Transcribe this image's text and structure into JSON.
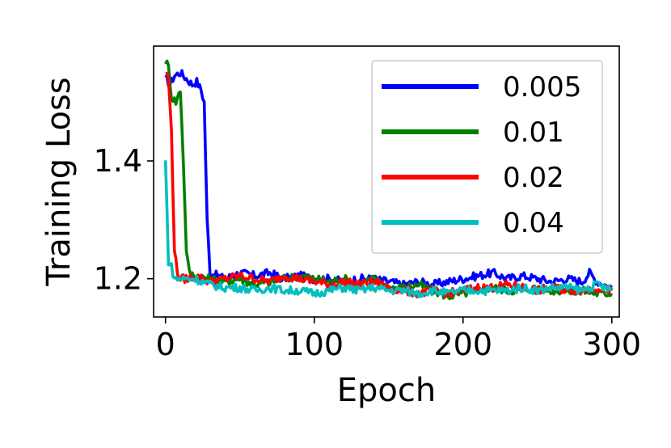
{
  "chart_data": {
    "type": "line",
    "title": "",
    "xlabel": "Epoch",
    "ylabel": "Training Loss",
    "xlim": [
      -8,
      305
    ],
    "ylim": [
      1.135,
      1.595
    ],
    "xticks": [
      0,
      100,
      200,
      300
    ],
    "xtick_labels": [
      "0",
      "100",
      "200",
      "300"
    ],
    "yticks": [
      1.2,
      1.4
    ],
    "ytick_labels": [
      "1.2",
      "1.4"
    ],
    "grid": false,
    "legend_position": "upper right",
    "series": [
      {
        "name": "0.005",
        "color": "#0000ff",
        "x": [
          0,
          3,
          6,
          10,
          14,
          18,
          21,
          24,
          26,
          28,
          30,
          35,
          40,
          50,
          60,
          70,
          80,
          90,
          100,
          110,
          120,
          130,
          140,
          150,
          160,
          170,
          180,
          190,
          200,
          210,
          220,
          230,
          240,
          250,
          260,
          270,
          280,
          285,
          290,
          295,
          300
        ],
        "y": [
          1.54,
          1.53,
          1.545,
          1.55,
          1.54,
          1.53,
          1.535,
          1.52,
          1.5,
          1.3,
          1.21,
          1.205,
          1.2,
          1.21,
          1.205,
          1.21,
          1.2,
          1.205,
          1.2,
          1.2,
          1.195,
          1.2,
          1.2,
          1.195,
          1.19,
          1.195,
          1.19,
          1.195,
          1.2,
          1.205,
          1.21,
          1.2,
          1.205,
          1.2,
          1.195,
          1.2,
          1.195,
          1.21,
          1.195,
          1.19,
          1.185
        ]
      },
      {
        "name": "0.01",
        "color": "#008000",
        "x": [
          0,
          2,
          4,
          7,
          10,
          12,
          14,
          16,
          20,
          30,
          40,
          50,
          60,
          70,
          80,
          90,
          100,
          110,
          120,
          130,
          140,
          150,
          160,
          170,
          180,
          190,
          200,
          210,
          220,
          230,
          240,
          250,
          260,
          270,
          280,
          290,
          300
        ],
        "y": [
          1.57,
          1.56,
          1.51,
          1.5,
          1.52,
          1.4,
          1.25,
          1.21,
          1.205,
          1.2,
          1.195,
          1.2,
          1.19,
          1.195,
          1.2,
          1.205,
          1.2,
          1.195,
          1.2,
          1.19,
          1.2,
          1.185,
          1.185,
          1.19,
          1.18,
          1.17,
          1.175,
          1.18,
          1.185,
          1.18,
          1.18,
          1.185,
          1.18,
          1.18,
          1.18,
          1.175,
          1.175
        ]
      },
      {
        "name": "0.02",
        "color": "#ff0000",
        "x": [
          0,
          2,
          4,
          6,
          8,
          10,
          15,
          20,
          30,
          40,
          50,
          60,
          70,
          80,
          90,
          100,
          110,
          120,
          130,
          140,
          150,
          160,
          170,
          180,
          190,
          200,
          210,
          220,
          230,
          240,
          250,
          260,
          270,
          280,
          290,
          300
        ],
        "y": [
          1.55,
          1.54,
          1.45,
          1.25,
          1.21,
          1.2,
          1.2,
          1.205,
          1.195,
          1.2,
          1.205,
          1.2,
          1.195,
          1.205,
          1.2,
          1.195,
          1.19,
          1.195,
          1.19,
          1.195,
          1.185,
          1.18,
          1.175,
          1.18,
          1.175,
          1.18,
          1.185,
          1.185,
          1.19,
          1.185,
          1.18,
          1.185,
          1.18,
          1.18,
          1.185,
          1.18
        ]
      },
      {
        "name": "0.04",
        "color": "#00bfbf",
        "x": [
          0,
          2,
          4,
          6,
          10,
          20,
          30,
          40,
          50,
          60,
          70,
          80,
          90,
          100,
          110,
          120,
          130,
          140,
          150,
          160,
          170,
          180,
          190,
          200,
          210,
          220,
          230,
          240,
          250,
          260,
          270,
          280,
          290,
          300
        ],
        "y": [
          1.4,
          1.23,
          1.22,
          1.2,
          1.2,
          1.2,
          1.19,
          1.185,
          1.185,
          1.18,
          1.185,
          1.18,
          1.18,
          1.175,
          1.18,
          1.185,
          1.18,
          1.185,
          1.18,
          1.18,
          1.175,
          1.18,
          1.175,
          1.18,
          1.18,
          1.18,
          1.18,
          1.185,
          1.18,
          1.185,
          1.185,
          1.18,
          1.19,
          1.18
        ]
      }
    ]
  }
}
